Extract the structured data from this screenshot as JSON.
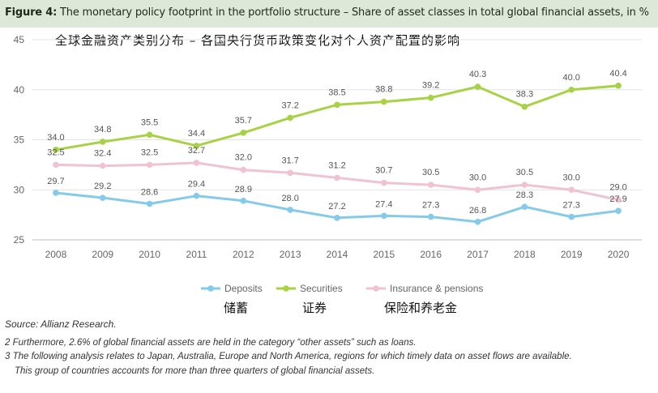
{
  "header": {
    "figure_label": "Figure 4:",
    "title": "The monetary policy footprint in the portfolio structure – Share of asset classes in total global financial assets, in %"
  },
  "subtitle_cn": "全球金融资产类别分布 – 各国央行货币政策变化对个人资产配置的影响",
  "chart_data": {
    "type": "line",
    "x": [
      "2008",
      "2009",
      "2010",
      "2011",
      "2012",
      "2013",
      "2014",
      "2015",
      "2016",
      "2017",
      "2018",
      "2019",
      "2020"
    ],
    "ylim": [
      25,
      45
    ],
    "yticks": [
      25,
      30,
      35,
      40,
      45
    ],
    "grid": true,
    "legend_position": "bottom",
    "series": [
      {
        "name": "Deposits",
        "name_cn": "储蓄",
        "color": "#85cbe9",
        "values": [
          29.7,
          29.2,
          28.6,
          29.4,
          28.9,
          28.0,
          27.2,
          27.4,
          27.3,
          26.8,
          28.3,
          27.3,
          27.9
        ]
      },
      {
        "name": "Securities",
        "name_cn": "证券",
        "color": "#a8d246",
        "values": [
          34.0,
          34.8,
          35.5,
          34.4,
          35.7,
          37.2,
          38.5,
          38.8,
          39.2,
          40.3,
          38.3,
          40.0,
          40.4
        ]
      },
      {
        "name": "Insurance & pensions",
        "name_cn": "保险和养老金",
        "color": "#efc3d2",
        "values": [
          32.5,
          32.4,
          32.5,
          32.7,
          32.0,
          31.7,
          31.2,
          30.7,
          30.5,
          30.0,
          30.5,
          30.0,
          29.0
        ]
      }
    ]
  },
  "source": "Source: Allianz Research.",
  "footnotes": {
    "fn2": "2  Furthermore, 2.6% of global financial assets are held in the category “other assets” such as loans.",
    "fn3a": "3  The following analysis relates to Japan, Australia, Europe and North America, regions for which timely data on asset flows are available.",
    "fn3b": "This group of countries accounts for more than three quarters of global financial assets."
  }
}
